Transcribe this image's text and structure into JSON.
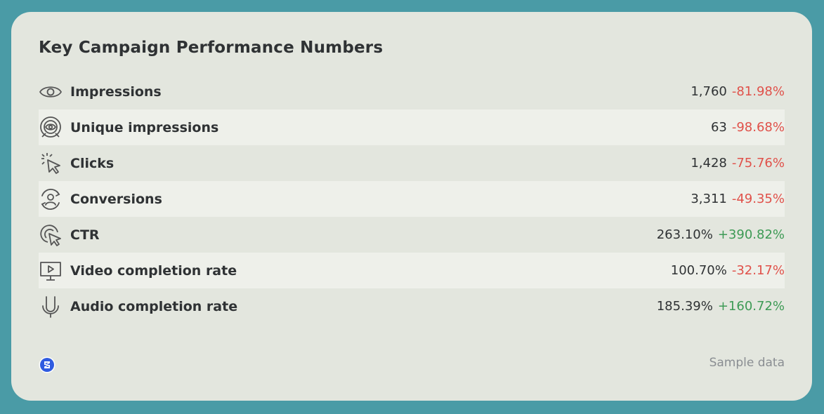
{
  "title": "Key Campaign Performance Numbers",
  "colors": {
    "negative": "#e0514a",
    "positive": "#3d9a55",
    "background": "#4a9ba6",
    "card": "#e3e6de"
  },
  "metrics": [
    {
      "icon": "eye-icon",
      "label": "Impressions",
      "value": "1,760",
      "change": "-81.98%",
      "trend": "negative"
    },
    {
      "icon": "target-eye-icon",
      "label": "Unique impressions",
      "value": "63",
      "change": "-98.68%",
      "trend": "negative"
    },
    {
      "icon": "cursor-click-icon",
      "label": "Clicks",
      "value": "1,428",
      "change": "-75.76%",
      "trend": "negative"
    },
    {
      "icon": "user-cycle-icon",
      "label": "Conversions",
      "value": "3,311",
      "change": "-49.35%",
      "trend": "negative"
    },
    {
      "icon": "target-cursor-icon",
      "label": "CTR",
      "value": "263.10%",
      "change": "+390.82%",
      "trend": "positive"
    },
    {
      "icon": "video-monitor-icon",
      "label": "Video completion rate",
      "value": "100.70%",
      "change": "-32.17%",
      "trend": "negative"
    },
    {
      "icon": "microphone-icon",
      "label": "Audio completion rate",
      "value": "185.39%",
      "change": "+160.72%",
      "trend": "positive"
    }
  ],
  "footer": {
    "logo_icon": "brand-logo-icon",
    "note": "Sample data"
  }
}
